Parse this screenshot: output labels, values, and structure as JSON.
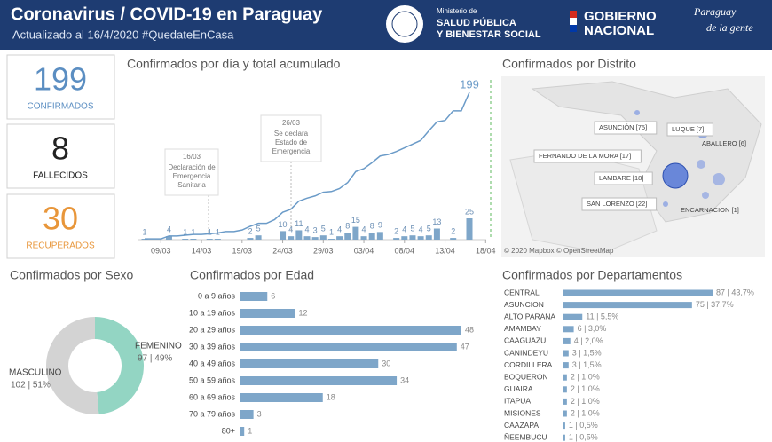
{
  "header": {
    "title": "Coronavirus / COVID-19 en Paraguay",
    "subtitle": "Actualizado al 16/4/2020 #QuedateEnCasa",
    "ministry": [
      "Ministerio de",
      "SALUD PÚBLICA",
      "Y BIENESTAR SOCIAL"
    ],
    "government": [
      "GOBIERNO",
      "NACIONAL"
    ],
    "slogan": [
      "Paraguay",
      "de la gente"
    ]
  },
  "kpis": [
    {
      "value": 199,
      "label": "CONFIRMADOS",
      "color": "#5b8ec2"
    },
    {
      "value": 8,
      "label": "FALLECIDOS",
      "color": "#222222"
    },
    {
      "value": 30,
      "label": "RECUPERADOS",
      "color": "#e8963a"
    }
  ],
  "chart_data": [
    {
      "type": "combo",
      "title": "Confirmados por día y total acumulado",
      "categories": [
        null,
        null,
        "09/03",
        null,
        null,
        null,
        null,
        "14/03",
        null,
        null,
        null,
        null,
        "19/03",
        null,
        null,
        null,
        null,
        "24/03",
        null,
        null,
        null,
        null,
        "29/03",
        null,
        null,
        null,
        null,
        "03/04",
        null,
        null,
        null,
        null,
        "08/04",
        null,
        null,
        null,
        null,
        "13/04",
        null,
        null,
        null,
        null,
        "18/04"
      ],
      "series": [
        {
          "type": "bar",
          "color": "#7ea6c9",
          "values": [
            1,
            null,
            null,
            4,
            null,
            1,
            1,
            null,
            1,
            1,
            null,
            null,
            null,
            2,
            5,
            null,
            null,
            10,
            4,
            11,
            4,
            3,
            5,
            1,
            4,
            8,
            15,
            4,
            8,
            9,
            null,
            2,
            4,
            5,
            4,
            5,
            13,
            null,
            2,
            null,
            25,
            null,
            null
          ]
        },
        {
          "type": "line",
          "color": "#6b9bc8",
          "values": [
            1,
            1,
            1,
            5,
            5,
            6,
            7,
            7,
            8,
            9,
            11,
            11,
            13,
            18,
            22,
            22,
            27,
            37,
            41,
            52,
            56,
            59,
            64,
            65,
            69,
            77,
            92,
            96,
            104,
            113,
            115,
            119,
            124,
            129,
            134,
            147,
            159,
            161,
            174,
            174,
            199,
            null,
            null
          ]
        }
      ],
      "annotations": [
        {
          "label": "16/03",
          "lines": [
            "Declaración de",
            "Emergencia",
            "Sanitaria"
          ]
        },
        {
          "label": "26/03",
          "lines": [
            "Se declara",
            "Estado de",
            "Emergencia"
          ]
        }
      ]
    },
    {
      "type": "pie",
      "title": "Confirmados por Sexo",
      "categories": [
        "FEMENINO",
        "MASCULINO"
      ],
      "values": [
        97,
        102
      ],
      "value_labels": [
        "97 | 49%",
        "102 | 51%"
      ],
      "colors": [
        "#93d5c3",
        "#d3d3d3"
      ]
    },
    {
      "type": "hbar",
      "title": "Confirmados por Edad",
      "categories": [
        "0 a 9 años",
        "10 a 19 años",
        "20 a 29 años",
        "30 a 39 años",
        "40 a 49 años",
        "50 a 59 años",
        "60 a 69 años",
        "70 a 79 años",
        "80+"
      ],
      "values": [
        6,
        12,
        48,
        47,
        30,
        34,
        18,
        3,
        1
      ],
      "color": "#7ea6c9"
    },
    {
      "type": "hbar",
      "title": "Confirmados por Departamentos",
      "categories": [
        "CENTRAL",
        "ASUNCION",
        "ALTO PARANA",
        "AMAMBAY",
        "CAAGUAZU",
        "CANINDEYU",
        "CORDILLERA",
        "BOQUERON",
        "GUAIRA",
        "ITAPUA",
        "MISIONES",
        "CAAZAPA",
        "ÑEEMBUCU"
      ],
      "values": [
        87,
        75,
        11,
        6,
        4,
        3,
        3,
        2,
        2,
        2,
        2,
        1,
        1
      ],
      "value_labels": [
        "87 | 43,7%",
        "75 | 37,7%",
        "11 | 5,5%",
        "6 | 3,0%",
        "4 | 2,0%",
        "3 | 1,5%",
        "3 | 1,5%",
        "2 | 1,0%",
        "2 | 1,0%",
        "2 | 1,0%",
        "2 | 1,0%",
        "1 | 0,5%",
        "1 | 0,5%"
      ],
      "color": "#7ea6c9"
    }
  ],
  "map": {
    "title": "Confirmados por Distrito",
    "labels": [
      "ASUNCIÓN [75]",
      "LUQUE [7]",
      "ABALLERO [6]",
      "FERNANDO DE LA MORA [17]",
      "LAMBARE [18]",
      "SAN LORENZO [22]",
      "ENCARNACION [1]"
    ],
    "attribution": "© 2020 Mapbox © OpenStreetMap"
  }
}
